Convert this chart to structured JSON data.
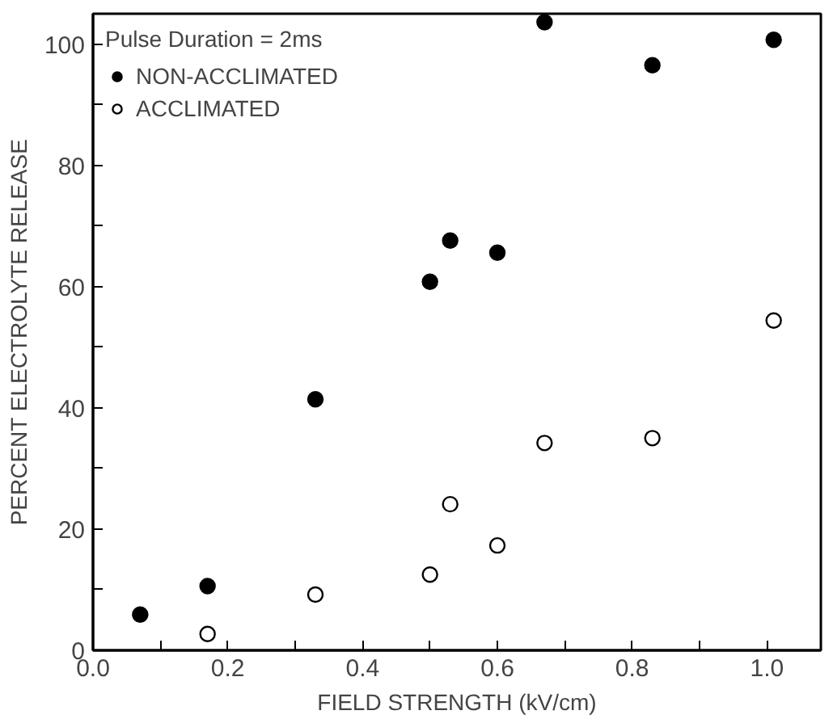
{
  "chart_data": {
    "type": "scatter",
    "xlabel": "FIELD STRENGTH (kV/cm)",
    "ylabel": "PERCENT ELECTROLYTE RELEASE",
    "legend_title": "Pulse Duration = 2ms",
    "xlim": [
      0,
      1.08
    ],
    "ylim": [
      0,
      105
    ],
    "xticks": [
      {
        "value": 0,
        "label": "0.0"
      },
      {
        "value": 0.1,
        "label": null
      },
      {
        "value": 0.2,
        "label": "0.2"
      },
      {
        "value": 0.3,
        "label": null
      },
      {
        "value": 0.4,
        "label": "0.4"
      },
      {
        "value": 0.5,
        "label": null
      },
      {
        "value": 0.6,
        "label": "0.6"
      },
      {
        "value": 0.7,
        "label": null
      },
      {
        "value": 0.8,
        "label": "0.8"
      },
      {
        "value": 0.9,
        "label": null
      },
      {
        "value": 1.0,
        "label": "1.0"
      }
    ],
    "yticks": [
      0,
      {
        "value": 10,
        "label": null
      },
      20,
      {
        "value": 30,
        "label": null
      },
      40,
      {
        "value": 50,
        "label": null
      },
      60,
      {
        "value": 70,
        "label": null
      },
      80,
      {
        "value": 90,
        "label": null
      },
      100
    ],
    "grid": false,
    "legend": "top left",
    "series": [
      {
        "name": "NON-ACCLIMATED",
        "color": "#000000",
        "marker": "circle",
        "x": [
          0.07,
          0.17,
          0.33,
          0.5,
          0.53,
          0.6,
          0.67,
          0.83,
          1.01
        ],
        "values": [
          5.9,
          10.6,
          41.4,
          60.8,
          67.6,
          65.6,
          103.6,
          96.5,
          100.7
        ]
      },
      {
        "name": "ACCLIMATED",
        "color": "#000000",
        "marker": "open circle",
        "x": [
          0.17,
          0.33,
          0.5,
          0.53,
          0.6,
          0.67,
          0.83,
          1.01
        ],
        "values": [
          2.7,
          9.2,
          12.5,
          24.1,
          17.3,
          34.2,
          35.0,
          54.4
        ]
      }
    ]
  }
}
